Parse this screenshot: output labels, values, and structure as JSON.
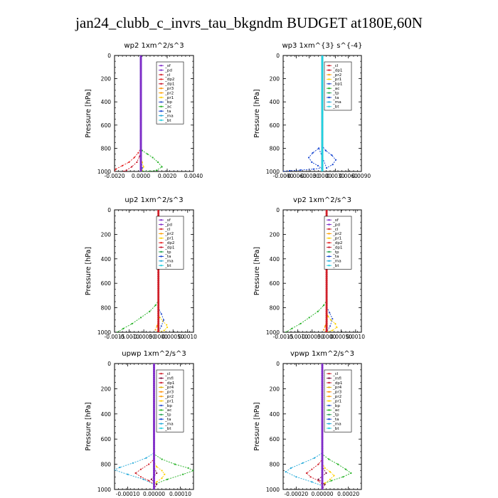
{
  "page": {
    "title": "jan24_clubb_c_invrs_tau_bkgndm  BUDGET at180E,60N"
  },
  "colors": {
    "sf": "#7f2bc8",
    "pd": "#7f2bc8",
    "cl": "#d0202a",
    "dp1": "#c81428",
    "dp2": "#e62020",
    "pr1": "#ffd000",
    "pr2": "#ffa000",
    "pr3": "#ff8c00",
    "pr4": "#e0b000",
    "mfl": "#7a0a3a",
    "bp": "#2a50c8",
    "ac": "#20b020",
    "tp": "#20a050",
    "ta": "#1040d0",
    "ma": "#20a8d8",
    "bt": "#20d0e0"
  },
  "chart_data": [
    {
      "type": "line",
      "name": "wp2",
      "title": "wp2  1xm^2/s^3",
      "ylabel": "Pressure [hPa]",
      "ylim": [
        0,
        1000
      ],
      "y_inverted": true,
      "xlim": [
        -0.002,
        0.004
      ],
      "xticks": [
        -0.002,
        0.0,
        0.002,
        0.004
      ],
      "xtick_labels": [
        "-0.0020",
        "0.0000",
        "0.0020",
        "0.0040"
      ],
      "yticks": [
        0,
        200,
        400,
        600,
        800,
        1000
      ],
      "ytick_labels": [
        "0",
        "200",
        "400",
        "600",
        "800",
        "1000"
      ],
      "legend": [
        "_sf",
        "_pd",
        "_cl",
        "_dp2",
        "_dp1",
        "_pr3",
        "_pr2",
        "_pr1",
        "_bp",
        "_ac",
        "_ta",
        "_ma",
        "_bt"
      ],
      "series": [
        {
          "name": "_ac",
          "color": "ac",
          "x": [
            0,
            0,
            0.0001,
            0.0005,
            0.0009,
            0.0013,
            0.0016,
            0.0012,
            0.0006,
            0.0002,
            0
          ],
          "y": [
            0,
            790,
            820,
            850,
            880,
            920,
            960,
            990,
            1000,
            1000,
            1000
          ]
        },
        {
          "name": "_dp2",
          "color": "dp2",
          "x": [
            0,
            0,
            -0.0002,
            -0.0005,
            -0.0009,
            -0.0014,
            -0.0019,
            -0.002
          ],
          "y": [
            0,
            800,
            840,
            880,
            920,
            950,
            980,
            1000
          ]
        },
        {
          "name": "_dp1",
          "color": "dp1",
          "x": [
            0,
            0,
            -0.0001,
            -0.0003,
            -0.0007,
            -0.0011,
            -0.0013
          ],
          "y": [
            0,
            820,
            870,
            920,
            960,
            990,
            1000
          ]
        },
        {
          "name": "_pr1",
          "color": "pr1",
          "x": [
            0,
            0,
            0.0001,
            0.0002,
            0.0001,
            0
          ],
          "y": [
            0,
            880,
            920,
            960,
            990,
            1000
          ]
        },
        {
          "name": "_bp",
          "color": "bp",
          "x": [
            0,
            0,
            5e-05,
            0.0001,
            5e-05,
            0
          ],
          "y": [
            0,
            900,
            940,
            970,
            990,
            1000
          ]
        },
        {
          "name": "_cl",
          "color": "cl",
          "x": [
            0,
            0
          ],
          "y": [
            0,
            1000
          ]
        },
        {
          "name": "_bt",
          "color": "bt",
          "x": [
            0,
            0
          ],
          "y": [
            0,
            1000
          ]
        },
        {
          "name": "_sf",
          "color": "sf",
          "x": [
            0,
            0
          ],
          "y": [
            0,
            1000
          ]
        }
      ]
    },
    {
      "type": "line",
      "name": "wp3",
      "title": "wp3  1xm^{3} s^{-4}",
      "ylabel": "Pressure [hPa]",
      "ylim": [
        0,
        1000
      ],
      "y_inverted": true,
      "xlim": [
        -0.009,
        0.009
      ],
      "xticks": [
        -0.009,
        -0.006,
        -0.003,
        0.0,
        0.003,
        0.006,
        0.009
      ],
      "xtick_labels": [
        "-0.0090",
        "-0.0060",
        "-0.0030",
        "0.0000",
        "0.0030",
        "0.0060",
        "0.0090"
      ],
      "yticks": [
        0,
        200,
        400,
        600,
        800,
        1000
      ],
      "ytick_labels": [
        "0",
        "200",
        "400",
        "600",
        "800",
        "1000"
      ],
      "legend": [
        "_cl",
        "_dp1",
        "_pr2",
        "_pr1",
        "_bp1",
        "_ac",
        "_tp",
        "_ta",
        "_ma",
        "_bt"
      ],
      "series": [
        {
          "name": "_ta",
          "color": "ta",
          "x": [
            0,
            0,
            0.0008,
            0.0022,
            0.0031,
            0.0024,
            0.001,
            -0.0008,
            -0.0022,
            -0.0031,
            -0.0024,
            -0.001,
            0
          ],
          "y": [
            0,
            780,
            820,
            860,
            900,
            940,
            970,
            800,
            840,
            880,
            920,
            950,
            980
          ]
        },
        {
          "name": "_ta_low",
          "color": "ta",
          "x": [
            0,
            -0.002,
            -0.005,
            -0.0075,
            -0.0089
          ],
          "y": [
            970,
            980,
            988,
            994,
            1000
          ]
        },
        {
          "name": "_cl",
          "color": "cl",
          "x": [
            0,
            0
          ],
          "y": [
            0,
            1000
          ]
        },
        {
          "name": "_bt",
          "color": "bt",
          "x": [
            0,
            0
          ],
          "y": [
            0,
            1000
          ]
        }
      ]
    },
    {
      "type": "line",
      "name": "up2",
      "title": "up2  1xm^2/s^3",
      "ylabel": "Pressure [hPa]",
      "ylim": [
        0,
        1000
      ],
      "y_inverted": true,
      "xlim": [
        -0.0015,
        0.0012
      ],
      "xticks": [
        -0.0015,
        -0.001,
        -0.0005,
        0.0,
        0.0005,
        0.001
      ],
      "xtick_labels": [
        "-0.0015",
        "-0.0010",
        "-0.00050",
        "0.0000",
        "0.00050",
        "0.0010"
      ],
      "yticks": [
        0,
        200,
        400,
        600,
        800,
        1000
      ],
      "ytick_labels": [
        "0",
        "200",
        "400",
        "600",
        "800",
        "1000"
      ],
      "legend": [
        "_sf",
        "_pd",
        "_cl",
        "_pr2",
        "_pr1",
        "_dp2",
        "_dp1",
        "_tp",
        "_ta",
        "_ma",
        "_bt"
      ],
      "series": [
        {
          "name": "_dp1",
          "color": "ac",
          "x": [
            0,
            0,
            -0.0001,
            -0.0003,
            -0.0006,
            -0.0009,
            -0.0012,
            -0.0014
          ],
          "y": [
            0,
            740,
            780,
            830,
            880,
            930,
            970,
            1000
          ]
        },
        {
          "name": "_pr1",
          "color": "pr1",
          "x": [
            0,
            0,
            5e-05,
            0.00015,
            0.00028,
            0.0003,
            0.0002,
            0
          ],
          "y": [
            0,
            850,
            880,
            910,
            940,
            960,
            985,
            1000
          ]
        },
        {
          "name": "_tp",
          "color": "bp",
          "x": [
            0,
            0,
            0.0001,
            0.00018,
            0.0001,
            0
          ],
          "y": [
            0,
            800,
            850,
            900,
            950,
            1000
          ]
        },
        {
          "name": "_pr2",
          "color": "pr2",
          "x": [
            0,
            0,
            -5e-05,
            -0.0001,
            0
          ],
          "y": [
            0,
            900,
            950,
            980,
            1000
          ]
        },
        {
          "name": "_cl",
          "color": "cl",
          "x": [
            0,
            0
          ],
          "y": [
            0,
            1000
          ]
        }
      ]
    },
    {
      "type": "line",
      "name": "vp2",
      "title": "vp2  1xm^2/s^3",
      "ylabel": "Pressure [hPa]",
      "ylim": [
        0,
        1000
      ],
      "y_inverted": true,
      "xlim": [
        -0.0015,
        0.0012
      ],
      "xticks": [
        -0.0015,
        -0.001,
        -0.0005,
        0.0,
        0.0005,
        0.001
      ],
      "xtick_labels": [
        "-0.0015",
        "-0.0010",
        "-0.00050",
        "0.0000",
        "0.00050",
        "0.0010"
      ],
      "yticks": [
        0,
        200,
        400,
        600,
        800,
        1000
      ],
      "ytick_labels": [
        "0",
        "200",
        "400",
        "600",
        "800",
        "1000"
      ],
      "legend": [
        "_sf",
        "_pd",
        "_cl",
        "_pr2",
        "_pr1",
        "_dp2",
        "_dp1",
        "_tp",
        "_ta",
        "_ma",
        "_bt"
      ],
      "series": [
        {
          "name": "_dp1",
          "color": "ac",
          "x": [
            0,
            0,
            -0.0001,
            -0.0003,
            -0.0006,
            -0.0009,
            -0.0012,
            -0.0014
          ],
          "y": [
            0,
            740,
            780,
            830,
            880,
            930,
            970,
            1000
          ]
        },
        {
          "name": "_pr1",
          "color": "pr1",
          "x": [
            0,
            0,
            5e-05,
            0.00015,
            0.0003,
            0.00035,
            0.0002,
            0
          ],
          "y": [
            0,
            840,
            870,
            900,
            930,
            960,
            985,
            1000
          ]
        },
        {
          "name": "_tp",
          "color": "bp",
          "x": [
            0,
            0,
            0.0001,
            0.0002,
            0.00012,
            0
          ],
          "y": [
            0,
            790,
            840,
            890,
            950,
            1000
          ]
        },
        {
          "name": "_pr2",
          "color": "pr2",
          "x": [
            0,
            0,
            -5e-05,
            -0.0001,
            0
          ],
          "y": [
            0,
            900,
            950,
            980,
            1000
          ]
        },
        {
          "name": "_cl",
          "color": "cl",
          "x": [
            0,
            0
          ],
          "y": [
            0,
            1000
          ]
        }
      ]
    },
    {
      "type": "line",
      "name": "upwp",
      "title": "upwp  1xm^2/s^3",
      "ylabel": "Pressure [hPa]",
      "ylim": [
        0,
        1000
      ],
      "y_inverted": true,
      "xlim": [
        -0.00015,
        0.00015
      ],
      "xticks": [
        -0.0001,
        0.0,
        0.0001
      ],
      "xtick_labels": [
        "-0.00010",
        "0.00000",
        "0.00010"
      ],
      "yticks": [
        0,
        200,
        400,
        600,
        800,
        1000
      ],
      "ytick_labels": [
        "0",
        "200",
        "400",
        "600",
        "800",
        "1000"
      ],
      "legend": [
        "_cl",
        "_mfl",
        "_dp1",
        "_pr4",
        "_pr3",
        "_pr2",
        "_pr1",
        "_bp",
        "_ac",
        "_tp",
        "_ta",
        "_ma",
        "_bt"
      ],
      "series": [
        {
          "name": "_ac",
          "color": "ac",
          "x": [
            0,
            0,
            3e-05,
            8e-05,
            0.00013,
            0.00015,
            0.00011,
            5e-05,
            0
          ],
          "y": [
            0,
            720,
            760,
            800,
            830,
            850,
            880,
            920,
            960
          ]
        },
        {
          "name": "_ma",
          "color": "ma",
          "x": [
            0,
            0,
            -3e-05,
            -8e-05,
            -0.00013,
            -0.00015,
            -0.0001,
            -4e-05,
            0
          ],
          "y": [
            0,
            710,
            750,
            790,
            825,
            845,
            880,
            920,
            960
          ]
        },
        {
          "name": "_cl",
          "color": "cl",
          "x": [
            0,
            0,
            -2e-05,
            -5e-05,
            -7e-05,
            -5e-05,
            -2e-05,
            0
          ],
          "y": [
            0,
            760,
            800,
            840,
            870,
            900,
            930,
            960
          ]
        },
        {
          "name": "_pr1",
          "color": "pr1",
          "x": [
            0,
            0,
            1e-05,
            3e-05,
            4e-05,
            3e-05,
            1e-05,
            0
          ],
          "y": [
            0,
            780,
            820,
            850,
            880,
            910,
            940,
            970
          ]
        },
        {
          "name": "_dp1",
          "color": "mfl",
          "x": [
            0,
            0,
            1e-05,
            -1e-05,
            1e-05,
            0
          ],
          "y": [
            0,
            820,
            870,
            920,
            960,
            1000
          ]
        },
        {
          "name": "_sf",
          "color": "sf",
          "x": [
            0,
            0
          ],
          "y": [
            0,
            1000
          ]
        }
      ]
    },
    {
      "type": "line",
      "name": "vpwp",
      "title": "vpwp  1xm^2/s^3",
      "ylabel": "Pressure [hPa]",
      "ylim": [
        0,
        1000
      ],
      "y_inverted": true,
      "xlim": [
        -0.0003,
        0.0003
      ],
      "xticks": [
        -0.0002,
        0.0,
        0.0002
      ],
      "xtick_labels": [
        "-0.00020",
        "0.00000",
        "0.00020"
      ],
      "yticks": [
        0,
        200,
        400,
        600,
        800,
        1000
      ],
      "ytick_labels": [
        "0",
        "200",
        "400",
        "600",
        "800",
        "1000"
      ],
      "legend": [
        "_cl",
        "_mfl",
        "_dp1",
        "_pr4",
        "_pr3",
        "_pr2",
        "_pr1",
        "_bp",
        "_ac",
        "_tp",
        "_ta",
        "_ma",
        "_bt"
      ],
      "series": [
        {
          "name": "_ac",
          "color": "ac",
          "x": [
            0,
            0,
            5e-05,
            0.00012,
            0.00018,
            0.00022,
            0.00016,
            7e-05,
            0
          ],
          "y": [
            0,
            720,
            760,
            800,
            840,
            870,
            900,
            930,
            960
          ]
        },
        {
          "name": "_ma",
          "color": "ma",
          "x": [
            0,
            0,
            -6e-05,
            -0.00015,
            -0.00024,
            -0.00028,
            -0.0002,
            -8e-05,
            0
          ],
          "y": [
            0,
            710,
            750,
            790,
            830,
            860,
            900,
            940,
            970
          ]
        },
        {
          "name": "_cl",
          "color": "cl",
          "x": [
            0,
            0,
            -3e-05,
            -8e-05,
            -0.00012,
            -9e-05,
            -3e-05,
            0
          ],
          "y": [
            0,
            760,
            800,
            840,
            870,
            900,
            930,
            960
          ]
        },
        {
          "name": "_pr1",
          "color": "pr1",
          "x": [
            0,
            0,
            2e-05,
            6e-05,
            9e-05,
            6e-05,
            2e-05,
            0
          ],
          "y": [
            0,
            790,
            830,
            860,
            890,
            920,
            950,
            970
          ]
        },
        {
          "name": "_dp1",
          "color": "mfl",
          "x": [
            0,
            0,
            3e-05,
            -3e-05,
            2e-05,
            0
          ],
          "y": [
            0,
            820,
            870,
            920,
            960,
            1000
          ]
        },
        {
          "name": "_sf",
          "color": "sf",
          "x": [
            0,
            0
          ],
          "y": [
            0,
            1000
          ]
        }
      ]
    }
  ]
}
